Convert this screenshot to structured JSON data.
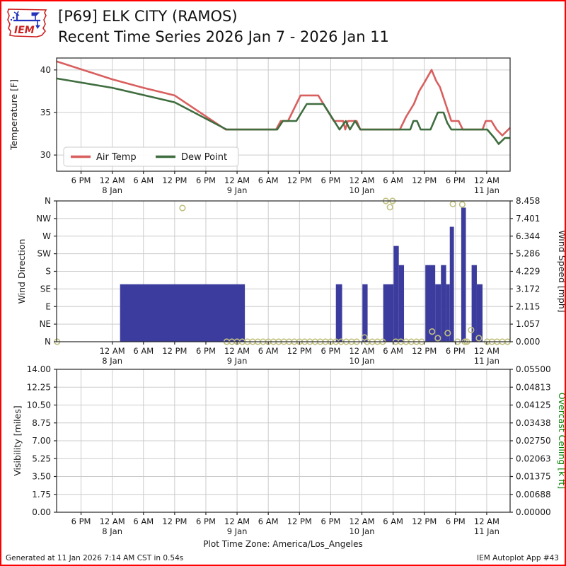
{
  "header": {
    "title_line1": "[P69] ELK CITY (RAMOS)",
    "title_line2": "Recent Time Series 2026 Jan 7 - 2026 Jan 11",
    "logo_text": "IEM"
  },
  "footer": {
    "timezone_note": "Plot Time Zone: America/Los_Angeles",
    "generated": "Generated at 11 Jan 2026 7:14 AM CST in 0.54s",
    "app": "IEM Autoplot App #43"
  },
  "colors": {
    "air_temp": "#d95f5f",
    "dew_point": "#3f6d3f",
    "wind_bar": "#3c3c9e",
    "dir_circle": "#c2c180",
    "grid": "#cccccc",
    "axis": "#262626",
    "frame": "#ff0000",
    "ceiling_label": "#008000"
  },
  "chart_data": [
    {
      "type": "line",
      "panel": "temperature",
      "ylabel": "Temperature [F]",
      "ylim": [
        28.1,
        41.4
      ],
      "yticks": [
        30,
        35,
        40
      ],
      "ytick_labels": [
        "30",
        "35",
        "40"
      ],
      "x_unit": "hours since 2026-01-07 00:00 America/Los_Angeles",
      "xlim": [
        13.3,
        100.5
      ],
      "xticks": [
        18,
        24,
        30,
        36,
        42,
        48,
        54,
        60,
        66,
        72,
        78,
        84,
        90,
        96
      ],
      "xtick_labels": [
        "6 PM",
        "12 AM",
        "6 AM",
        "12 PM",
        "6 PM",
        "12 AM",
        "6 AM",
        "12 PM",
        "6 PM",
        "12 AM",
        "6 AM",
        "12 PM",
        "6 PM",
        "12 AM"
      ],
      "date_labels": [
        [
          24,
          "8 Jan"
        ],
        [
          48,
          "9 Jan"
        ],
        [
          72,
          "10 Jan"
        ],
        [
          96,
          "11 Jan"
        ]
      ],
      "grid": true,
      "legend_position": "lower left",
      "series": [
        {
          "name": "Air Temp",
          "points": [
            [
              13.3,
              41
            ],
            [
              24,
              38.9
            ],
            [
              30,
              37.9
            ],
            [
              36,
              37
            ],
            [
              45.8,
              33
            ],
            [
              55.5,
              33
            ],
            [
              56.4,
              34
            ],
            [
              57.8,
              34
            ],
            [
              60.2,
              37
            ],
            [
              63.6,
              37
            ],
            [
              66.6,
              34
            ],
            [
              68.4,
              34
            ],
            [
              68.8,
              33
            ],
            [
              69.3,
              34
            ],
            [
              71.0,
              34
            ],
            [
              71.7,
              33
            ],
            [
              79.3,
              33
            ],
            [
              80.5,
              34.5
            ],
            [
              82,
              36
            ],
            [
              83,
              37.5
            ],
            [
              84,
              38.5
            ],
            [
              85.4,
              40
            ],
            [
              86.3,
              38.7
            ],
            [
              87,
              38
            ],
            [
              89.2,
              34
            ],
            [
              90.6,
              34
            ],
            [
              91.4,
              33
            ],
            [
              95.2,
              33
            ],
            [
              95.8,
              34
            ],
            [
              96.9,
              34
            ],
            [
              97.9,
              33
            ],
            [
              99,
              32.3
            ],
            [
              100.5,
              33.2
            ]
          ]
        },
        {
          "name": "Dew Point",
          "points": [
            [
              13.3,
              39
            ],
            [
              24,
              37.9
            ],
            [
              36,
              36.2
            ],
            [
              46,
              33
            ],
            [
              55.7,
              33
            ],
            [
              56.8,
              34
            ],
            [
              59.4,
              34
            ],
            [
              61.4,
              36
            ],
            [
              64.6,
              36
            ],
            [
              67.7,
              33
            ],
            [
              68.9,
              34
            ],
            [
              69.7,
              33
            ],
            [
              70.7,
              34
            ],
            [
              71.7,
              33
            ],
            [
              81.3,
              33
            ],
            [
              81.9,
              34
            ],
            [
              82.6,
              34
            ],
            [
              83.3,
              33
            ],
            [
              85.2,
              33
            ],
            [
              86.6,
              35
            ],
            [
              87.7,
              35
            ],
            [
              88.4,
              33.8
            ],
            [
              89.2,
              33
            ],
            [
              96.1,
              33
            ],
            [
              97.5,
              32
            ],
            [
              98.3,
              31.3
            ],
            [
              99.5,
              32
            ],
            [
              100.5,
              32
            ]
          ]
        }
      ]
    },
    {
      "type": "bar+scatter",
      "panel": "wind",
      "ylabel_left": "Wind Direction",
      "ytick_labels_left": [
        "N",
        "NE",
        "E",
        "SE",
        "S",
        "SW",
        "W",
        "NW",
        "N"
      ],
      "ylim_left_deg": [
        0,
        360
      ],
      "ylabel_right": "Wind Speed [mph]",
      "ytick_labels_right": [
        "0.000",
        "1.057",
        "2.115",
        "3.172",
        "4.229",
        "5.286",
        "6.344",
        "7.401",
        "8.458"
      ],
      "ylim_right": [
        0,
        8.458
      ],
      "xlim": [
        13.3,
        100.5
      ],
      "xticks": [
        24,
        30,
        36,
        42,
        48,
        54,
        60,
        66,
        72,
        78,
        84,
        90,
        96
      ],
      "xtick_labels": [
        "12 AM",
        "6 AM",
        "12 PM",
        "6 PM",
        "12 AM",
        "6 AM",
        "12 PM",
        "6 PM",
        "12 AM",
        "6 AM",
        "12 PM",
        "6 PM",
        "12 AM"
      ],
      "date_labels": [
        [
          24,
          "8 Jan"
        ],
        [
          48,
          "9 Jan"
        ],
        [
          72,
          "10 Jan"
        ],
        [
          96,
          "11 Jan"
        ]
      ],
      "grid": true,
      "speed_bars_mph": [
        [
          25.5,
          49.5,
          3.452
        ],
        [
          67.0,
          68.2,
          3.452
        ],
        [
          72.1,
          73.1,
          3.452
        ],
        [
          76.1,
          78.1,
          3.452
        ],
        [
          78.1,
          79.1,
          5.754
        ],
        [
          79.1,
          80.1,
          4.603
        ],
        [
          84.2,
          86.1,
          4.603
        ],
        [
          86.1,
          87.2,
          3.452
        ],
        [
          87.2,
          88.2,
          4.603
        ],
        [
          88.2,
          88.9,
          3.452
        ],
        [
          88.9,
          89.7,
          6.905
        ],
        [
          91.1,
          92.0,
          8.055
        ],
        [
          93.1,
          94.1,
          4.603
        ],
        [
          94.1,
          95.2,
          3.452
        ]
      ],
      "direction_points_deg": [
        [
          13.4,
          0
        ],
        [
          37.5,
          342
        ],
        [
          46,
          0
        ],
        [
          47,
          0
        ],
        [
          48,
          0
        ],
        [
          49,
          0
        ],
        [
          50,
          0
        ],
        [
          51,
          0
        ],
        [
          52,
          0
        ],
        [
          53,
          0
        ],
        [
          54,
          0
        ],
        [
          55,
          0
        ],
        [
          56,
          0
        ],
        [
          57,
          0
        ],
        [
          58,
          0
        ],
        [
          59,
          0
        ],
        [
          60,
          0
        ],
        [
          61,
          0
        ],
        [
          62,
          0
        ],
        [
          63,
          0
        ],
        [
          64,
          0
        ],
        [
          65,
          0
        ],
        [
          66,
          0
        ],
        [
          67,
          0
        ],
        [
          68,
          0
        ],
        [
          69,
          0
        ],
        [
          70,
          0
        ],
        [
          71,
          0
        ],
        [
          72.5,
          11
        ],
        [
          73,
          0
        ],
        [
          74,
          0
        ],
        [
          75,
          0
        ],
        [
          76,
          0
        ],
        [
          76.6,
          360
        ],
        [
          77.4,
          344
        ],
        [
          77.9,
          360
        ],
        [
          78.5,
          0
        ],
        [
          79.5,
          0
        ],
        [
          80.5,
          0
        ],
        [
          81.5,
          0
        ],
        [
          82.5,
          0
        ],
        [
          83.5,
          0
        ],
        [
          85.5,
          26
        ],
        [
          86.6,
          9
        ],
        [
          88.5,
          22
        ],
        [
          89.5,
          352
        ],
        [
          90.4,
          0
        ],
        [
          91.3,
          351
        ],
        [
          91.8,
          0
        ],
        [
          92.2,
          0
        ],
        [
          93,
          30
        ],
        [
          94.5,
          9
        ],
        [
          96.1,
          0
        ],
        [
          97,
          0
        ],
        [
          98,
          0
        ],
        [
          99,
          0
        ],
        [
          100,
          0
        ]
      ]
    },
    {
      "type": "empty",
      "panel": "visibility",
      "ylabel_left": "Visibility [miles]",
      "ytick_labels_left": [
        "0.00",
        "1.75",
        "3.50",
        "5.25",
        "7.00",
        "8.75",
        "10.50",
        "12.25",
        "14.00"
      ],
      "ylim_left": [
        0,
        14
      ],
      "ylabel_right": "Overcast Ceiling [k ft]",
      "ytick_labels_right": [
        "0.00000",
        "0.00688",
        "0.01375",
        "0.02063",
        "0.02750",
        "0.03438",
        "0.04125",
        "0.04813",
        "0.05500"
      ],
      "ylim_right": [
        0,
        0.055
      ],
      "xlim": [
        13.3,
        100.5
      ],
      "xticks": [
        18,
        24,
        30,
        36,
        42,
        48,
        54,
        60,
        66,
        72,
        78,
        84,
        90,
        96
      ],
      "xtick_labels": [
        "6 PM",
        "12 AM",
        "6 AM",
        "12 PM",
        "6 PM",
        "12 AM",
        "6 AM",
        "12 PM",
        "6 PM",
        "12 AM",
        "6 AM",
        "12 PM",
        "6 PM",
        "12 AM"
      ],
      "date_labels": [
        [
          24,
          "8 Jan"
        ],
        [
          48,
          "9 Jan"
        ],
        [
          72,
          "10 Jan"
        ],
        [
          96,
          "11 Jan"
        ]
      ],
      "grid": true,
      "series": []
    }
  ]
}
